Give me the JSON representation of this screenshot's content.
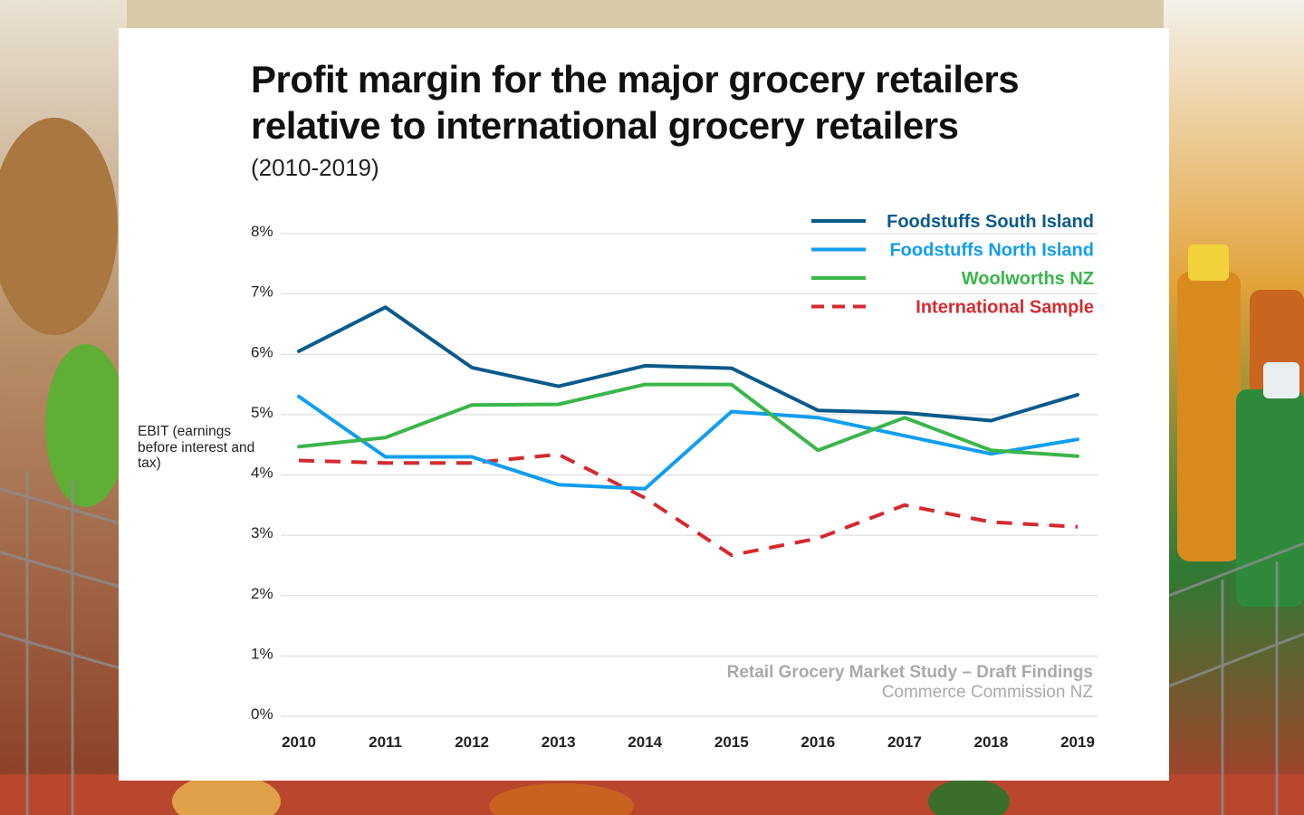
{
  "colors": {
    "foodstuffs_south": "#0a5a8c",
    "foodstuffs_north": "#129eee",
    "woolworths": "#3ab64a",
    "international": "#d42a2f",
    "grid": "#d6d6d6"
  },
  "chart_data": {
    "type": "line",
    "title": "Profit margin for the major grocery retailers relative to international grocery retailers",
    "subtitle": "(2010-2019)",
    "ylabel": "EBIT (earnings before interest and tax)",
    "xlabel": "",
    "x": [
      "2010",
      "2011",
      "2012",
      "2013",
      "2014",
      "2015",
      "2016",
      "2017",
      "2018",
      "2019"
    ],
    "y_ticks": [
      "0%",
      "1%",
      "2%",
      "3%",
      "4%",
      "5%",
      "6%",
      "7%",
      "8%"
    ],
    "ylim": [
      0,
      8
    ],
    "legend_position": "top-right",
    "series": [
      {
        "name": "Foodstuffs South Island",
        "style": "solid",
        "color_key": "foodstuffs_south",
        "values": [
          6.05,
          6.78,
          5.78,
          5.47,
          5.81,
          5.77,
          5.07,
          5.03,
          4.9,
          5.33
        ]
      },
      {
        "name": "Foodstuffs North Island",
        "style": "solid",
        "color_key": "foodstuffs_north",
        "values": [
          5.3,
          4.3,
          4.3,
          3.84,
          3.77,
          5.05,
          4.95,
          4.65,
          4.35,
          4.59
        ]
      },
      {
        "name": "Woolworths NZ",
        "style": "solid",
        "color_key": "woolworths",
        "values": [
          4.47,
          4.62,
          5.16,
          5.17,
          5.5,
          5.5,
          4.41,
          4.95,
          4.41,
          4.31
        ]
      },
      {
        "name": "International Sample",
        "style": "dashed",
        "color_key": "international",
        "values": [
          4.24,
          4.2,
          4.2,
          4.34,
          3.62,
          2.67,
          2.95,
          3.5,
          3.22,
          3.14
        ]
      }
    ]
  },
  "source": {
    "line1": "Retail Grocery Market Study – Draft Findings",
    "line2": "Commerce Commission NZ"
  }
}
